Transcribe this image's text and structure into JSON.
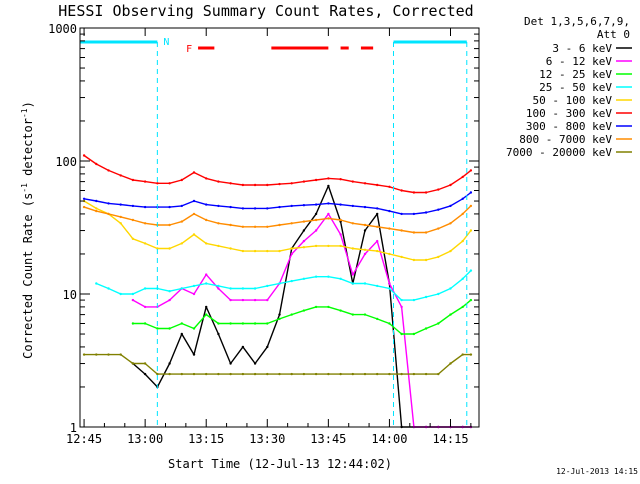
{
  "chart_data": {
    "type": "line",
    "title": "HESSI Observing Summary Count Rates, Corrected",
    "xlabel": "Start Time (12-Jul-13 12:44:02)",
    "ylabel_main": "Corrected Count Rate (s",
    "ylabel_sup1": "-1",
    "ylabel_mid": " detector",
    "ylabel_sup2": "-1",
    "ylabel_end": ")",
    "y_scale": "log",
    "ylim": [
      1,
      1000
    ],
    "xlim_minutes": [
      -1,
      97
    ],
    "x_ticks": [
      "12:45",
      "13:00",
      "13:15",
      "13:30",
      "13:45",
      "14:00",
      "14:15"
    ],
    "x_tick_minutes": [
      0,
      15,
      30,
      45,
      60,
      75,
      90
    ],
    "y_ticks": [
      "1",
      "10",
      "100",
      "1000"
    ],
    "y_tick_values": [
      1,
      10,
      100,
      1000
    ],
    "legend_header": [
      "Det 1,3,5,6,7,9,",
      "Att 0"
    ],
    "legend_position": "right",
    "footer": "12-Jul-2013 14:15",
    "annotations": {
      "night_label": "N",
      "flare_label": "F",
      "night_intervals": [
        [
          -1,
          18
        ],
        [
          76,
          94
        ]
      ],
      "night_boundaries": [
        18,
        76,
        94
      ],
      "flare_intervals": [
        [
          28,
          32
        ],
        [
          46,
          60
        ],
        [
          63,
          65
        ],
        [
          68,
          71
        ]
      ]
    },
    "x": [
      0,
      3,
      6,
      9,
      12,
      15,
      18,
      21,
      24,
      27,
      30,
      33,
      36,
      39,
      42,
      45,
      48,
      51,
      54,
      57,
      60,
      63,
      66,
      69,
      72,
      75,
      78,
      81,
      84,
      87,
      90,
      93,
      95
    ],
    "series": [
      {
        "name": "3 - 6 keV",
        "color": "#000000",
        "values": [
          null,
          null,
          null,
          null,
          3,
          2.5,
          2,
          3,
          5,
          3.5,
          8,
          5,
          3,
          4,
          3,
          4,
          7,
          22,
          30,
          40,
          65,
          35,
          12,
          30,
          40,
          12,
          1,
          1,
          1,
          1,
          1,
          1,
          1
        ]
      },
      {
        "name": "6 - 12 keV",
        "color": "#ff00ff",
        "values": [
          null,
          null,
          null,
          null,
          9,
          8,
          8,
          9,
          11,
          10,
          14,
          11,
          9,
          9,
          9,
          9,
          12,
          20,
          25,
          30,
          40,
          28,
          14,
          20,
          25,
          12,
          8,
          1,
          1,
          1,
          1,
          1,
          1
        ]
      },
      {
        "name": "12 - 25 keV",
        "color": "#00ff00",
        "values": [
          null,
          null,
          null,
          null,
          6,
          6,
          5.5,
          5.5,
          6,
          5.5,
          7,
          6,
          6,
          6,
          6,
          6,
          6.5,
          7,
          7.5,
          8,
          8,
          7.5,
          7,
          7,
          6.5,
          6,
          5,
          5,
          5.5,
          6,
          7,
          8,
          9
        ]
      },
      {
        "name": "25 - 50 keV",
        "color": "#00ffff",
        "values": [
          null,
          12,
          11,
          10,
          10,
          11,
          11,
          10.5,
          11,
          11.5,
          12,
          11.5,
          11,
          11,
          11,
          11.5,
          12,
          12.5,
          13,
          13.5,
          13.5,
          13,
          12,
          12,
          11.5,
          11,
          9,
          9,
          9.5,
          10,
          11,
          13,
          15
        ]
      },
      {
        "name": "50 - 100 keV",
        "color": "#ffd700",
        "values": [
          50,
          44,
          40,
          34,
          26,
          24,
          22,
          22,
          24,
          28,
          24,
          23,
          22,
          21,
          21,
          21,
          21,
          22,
          22.5,
          23,
          23,
          23,
          22,
          21.5,
          21,
          20,
          19,
          18,
          18,
          19,
          21,
          25,
          30
        ]
      },
      {
        "name": "100 - 300 keV",
        "color": "#ff0000",
        "values": [
          110,
          95,
          85,
          78,
          72,
          70,
          68,
          68,
          72,
          82,
          74,
          70,
          68,
          66,
          66,
          66,
          67,
          68,
          70,
          72,
          74,
          73,
          70,
          68,
          66,
          64,
          60,
          58,
          58,
          61,
          66,
          76,
          85
        ]
      },
      {
        "name": "300 - 800 keV",
        "color": "#0000ff",
        "values": [
          52,
          50,
          48,
          47,
          46,
          45,
          45,
          45,
          46,
          50,
          47,
          46,
          45,
          44,
          44,
          44,
          45,
          46,
          46.5,
          47,
          48,
          47,
          46,
          45,
          44,
          42,
          40,
          40,
          41,
          43,
          46,
          52,
          58
        ]
      },
      {
        "name": "800 - 7000 keV",
        "color": "#ff8c00",
        "values": [
          45,
          42,
          40,
          38,
          36,
          34,
          33,
          33,
          35,
          40,
          36,
          34,
          33,
          32,
          32,
          32,
          33,
          34,
          35,
          36,
          37,
          36,
          34,
          33,
          32,
          31,
          30,
          29,
          29,
          31,
          34,
          40,
          46
        ]
      },
      {
        "name": "7000 - 20000 keV",
        "color": "#808000",
        "values": [
          3.5,
          3.5,
          3.5,
          3.5,
          3,
          3,
          2.5,
          2.5,
          2.5,
          2.5,
          2.5,
          2.5,
          2.5,
          2.5,
          2.5,
          2.5,
          2.5,
          2.5,
          2.5,
          2.5,
          2.5,
          2.5,
          2.5,
          2.5,
          2.5,
          2.5,
          2.5,
          2.5,
          2.5,
          2.5,
          3,
          3.5,
          3.5
        ]
      }
    ]
  }
}
